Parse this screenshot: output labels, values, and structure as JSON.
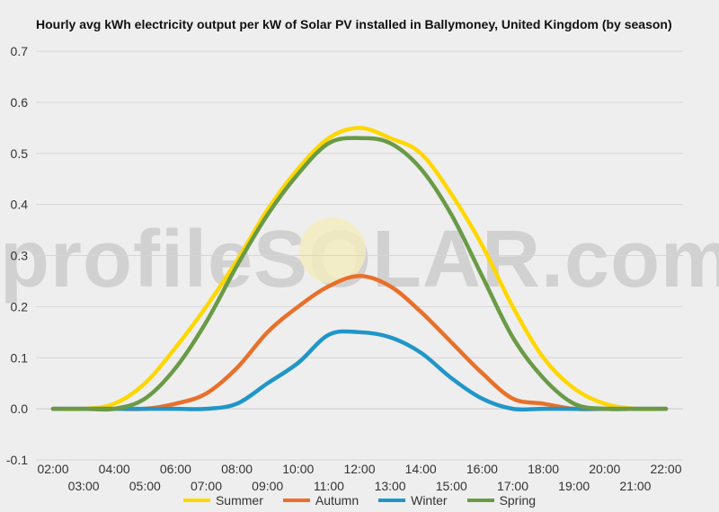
{
  "title": "Hourly avg kWh electricity output per kW of Solar PV installed in Ballymoney, United Kingdom (by season)",
  "watermark": {
    "text": "profileSOLAR.com"
  },
  "chart_data": {
    "type": "line",
    "title": "Hourly avg kWh electricity output per kW of Solar PV installed in Ballymoney, United Kingdom (by season)",
    "xlabel": "",
    "ylabel": "",
    "ylim": [
      -0.1,
      0.7
    ],
    "yticks": [
      -0.1,
      0.0,
      0.1,
      0.2,
      0.3,
      0.4,
      0.5,
      0.6,
      0.7
    ],
    "ytick_labels": [
      "-0.1",
      "0.0",
      "0.1",
      "0.2",
      "0.3",
      "0.4",
      "0.5",
      "0.6",
      "0.7"
    ],
    "x": [
      "02:00",
      "03:00",
      "04:00",
      "05:00",
      "06:00",
      "07:00",
      "08:00",
      "09:00",
      "10:00",
      "11:00",
      "12:00",
      "13:00",
      "14:00",
      "15:00",
      "16:00",
      "17:00",
      "18:00",
      "19:00",
      "20:00",
      "21:00",
      "22:00"
    ],
    "grid": true,
    "legend_position": "bottom",
    "series": [
      {
        "name": "Summer",
        "color": "#ffd700",
        "values": [
          0.0,
          0.0,
          0.01,
          0.05,
          0.12,
          0.2,
          0.29,
          0.39,
          0.47,
          0.53,
          0.55,
          0.53,
          0.5,
          0.42,
          0.32,
          0.2,
          0.1,
          0.04,
          0.01,
          0.0,
          0.0
        ]
      },
      {
        "name": "Autumn",
        "color": "#e8702a",
        "values": [
          0.0,
          0.0,
          0.0,
          0.0,
          0.01,
          0.03,
          0.08,
          0.15,
          0.2,
          0.24,
          0.26,
          0.24,
          0.19,
          0.13,
          0.07,
          0.02,
          0.01,
          0.0,
          0.0,
          0.0,
          0.0
        ]
      },
      {
        "name": "Winter",
        "color": "#2096c8",
        "values": [
          0.0,
          0.0,
          0.0,
          0.0,
          0.0,
          0.0,
          0.01,
          0.05,
          0.09,
          0.145,
          0.15,
          0.14,
          0.11,
          0.06,
          0.02,
          0.0,
          0.0,
          0.0,
          0.0,
          0.0,
          0.0
        ]
      },
      {
        "name": "Spring",
        "color": "#6a9a46",
        "values": [
          0.0,
          0.0,
          0.0,
          0.02,
          0.08,
          0.17,
          0.28,
          0.38,
          0.46,
          0.52,
          0.53,
          0.52,
          0.47,
          0.38,
          0.26,
          0.14,
          0.06,
          0.01,
          0.0,
          0.0,
          0.0
        ]
      }
    ]
  }
}
